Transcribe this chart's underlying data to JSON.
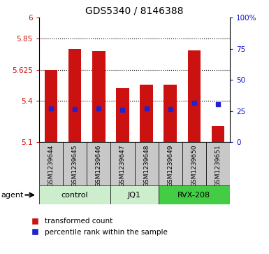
{
  "title": "GDS5340 / 8146388",
  "samples": [
    "GSM1239644",
    "GSM1239645",
    "GSM1239646",
    "GSM1239647",
    "GSM1239648",
    "GSM1239649",
    "GSM1239650",
    "GSM1239651"
  ],
  "bar_tops": [
    5.625,
    5.775,
    5.76,
    5.49,
    5.515,
    5.515,
    5.765,
    5.22
  ],
  "bar_bottom": 5.1,
  "blue_vals": [
    5.345,
    5.34,
    5.345,
    5.335,
    5.345,
    5.34,
    5.385,
    5.375
  ],
  "ylim_left": [
    5.1,
    6.0
  ],
  "ylim_right": [
    0,
    100
  ],
  "yticks_left": [
    5.1,
    5.4,
    5.625,
    5.85,
    6.0
  ],
  "ytick_labels_left": [
    "5.1",
    "5.4",
    "5.625",
    "5.85",
    "6"
  ],
  "yticks_right": [
    0,
    25,
    50,
    75,
    100
  ],
  "ytick_labels_right": [
    "0",
    "25",
    "50",
    "75",
    "100%"
  ],
  "hgrid_vals": [
    5.85,
    5.625,
    5.4
  ],
  "group_defs": [
    {
      "label": "control",
      "start": 0,
      "end": 2,
      "color": "#cceecc"
    },
    {
      "label": "JQ1",
      "start": 3,
      "end": 4,
      "color": "#cceecc"
    },
    {
      "label": "RVX-208",
      "start": 5,
      "end": 7,
      "color": "#44cc44"
    }
  ],
  "bar_color": "#cc1111",
  "blue_color": "#2222cc",
  "left_tick_color": "#cc1111",
  "right_tick_color": "#1111cc",
  "xtick_bg": "#c8c8c8",
  "agent_label": "agent",
  "legend_red": "transformed count",
  "legend_blue": "percentile rank within the sample",
  "figsize": [
    3.85,
    3.63
  ],
  "dpi": 100
}
